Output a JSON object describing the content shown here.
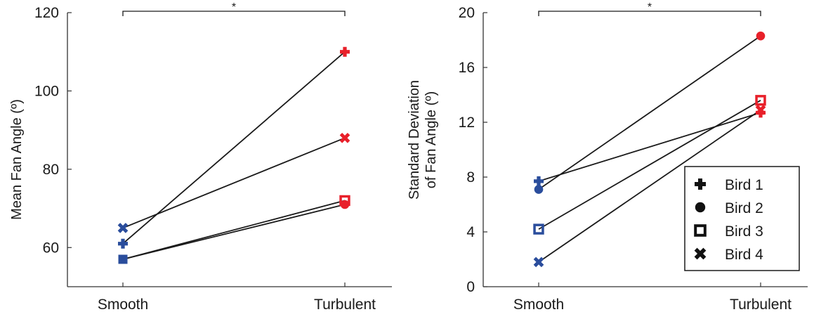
{
  "chart_data": [
    {
      "type": "line",
      "title": "",
      "xlabel": "",
      "ylabel": "Mean Fan Angle (º)",
      "categories": [
        "Smooth",
        "Turbulent"
      ],
      "ylim": [
        50,
        120
      ],
      "yticks": [
        60,
        80,
        100,
        120
      ],
      "significance": {
        "label": "*",
        "between": [
          "Smooth",
          "Turbulent"
        ]
      },
      "series": [
        {
          "name": "Bird 1",
          "marker": "plus-icon",
          "values": [
            61,
            110
          ]
        },
        {
          "name": "Bird 2",
          "marker": "circle-icon",
          "values": [
            57,
            71
          ]
        },
        {
          "name": "Bird 3",
          "marker": "square-icon",
          "values": [
            57,
            72
          ]
        },
        {
          "name": "Bird 4",
          "marker": "cross-icon",
          "values": [
            65,
            88
          ]
        }
      ]
    },
    {
      "type": "line",
      "title": "",
      "xlabel": "",
      "ylabel_lines": [
        "Standard Deviation",
        "of Fan Angle (º)"
      ],
      "categories": [
        "Smooth",
        "Turbulent"
      ],
      "ylim": [
        0,
        20
      ],
      "yticks": [
        0,
        4,
        8,
        12,
        16,
        20
      ],
      "significance": {
        "label": "*",
        "between": [
          "Smooth",
          "Turbulent"
        ]
      },
      "legend": {
        "position": "bottom-right"
      },
      "series": [
        {
          "name": "Bird 1",
          "marker": "plus-icon",
          "values": [
            7.7,
            12.7
          ]
        },
        {
          "name": "Bird 2",
          "marker": "circle-icon",
          "values": [
            7.1,
            18.3
          ]
        },
        {
          "name": "Bird 3",
          "marker": "square-icon",
          "values": [
            4.2,
            13.6
          ]
        },
        {
          "name": "Bird 4",
          "marker": "cross-icon",
          "values": [
            1.8,
            12.9
          ]
        }
      ]
    }
  ],
  "colors": {
    "smooth": "#2a4d9c",
    "turbulent": "#e8202a",
    "line": "#1a1a1a",
    "axis": "#333333"
  }
}
